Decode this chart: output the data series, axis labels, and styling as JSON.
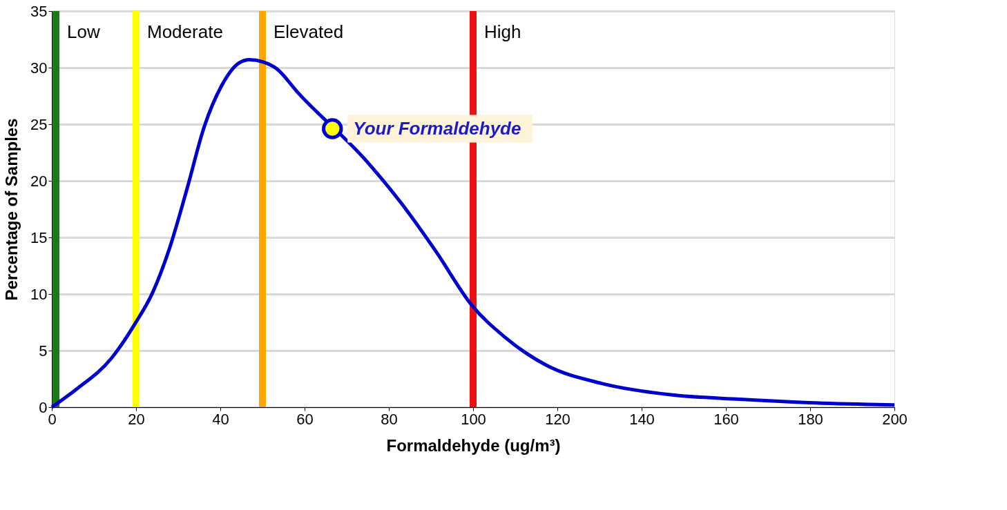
{
  "chart_data": {
    "type": "line",
    "xlabel": "Formaldehyde (ug/m³)",
    "ylabel": "Percentage of Samples",
    "xlim": [
      0,
      200
    ],
    "xticks": [
      0,
      20,
      40,
      60,
      80,
      100,
      120,
      140,
      160,
      180,
      200
    ],
    "ylim": [
      0,
      35
    ],
    "yticks": [
      0,
      5,
      10,
      15,
      20,
      25,
      30,
      35
    ],
    "grid": "y",
    "legend": false,
    "series": [
      {
        "color": "#0000cc",
        "x": [
          0,
          5.9,
          14.1,
          19.8,
          23.9,
          28.0,
          32.1,
          36.2,
          40.3,
          44.4,
          46.9,
          50.2,
          53.4,
          58.4,
          74.8,
          83.0,
          91.1,
          99.7,
          107.5,
          117.4,
          130.5,
          146.9,
          163.3,
          179.7,
          200
        ],
        "values": [
          0,
          1.6,
          4.3,
          7.4,
          10.1,
          14.1,
          19.3,
          24.8,
          28.4,
          30.4,
          30.7,
          30.5,
          29.9,
          27.8,
          21.7,
          18.0,
          13.8,
          9.0,
          6.2,
          3.7,
          2.1,
          1.1,
          0.7,
          0.4,
          0.2
        ]
      },
      {
        "type": "scatter",
        "color": "#ffff00",
        "marker": "circle",
        "x": [
          66.6
        ],
        "values": [
          24.6
        ]
      }
    ],
    "ref_lines": [
      {
        "axis": "x",
        "value": 1,
        "label": "Low",
        "color": "#1a7a1a"
      },
      {
        "axis": "x",
        "value": 20,
        "label": "Moderate",
        "color": "#ffff00"
      },
      {
        "axis": "x",
        "value": 50,
        "label": "Elevated",
        "color": "#ffa500"
      },
      {
        "axis": "x",
        "value": 100,
        "label": "High",
        "color": "#ee1111"
      }
    ],
    "annotations": [
      {
        "text": "Your Formaldehyde",
        "x": 66.6,
        "y": 24.6
      }
    ]
  }
}
